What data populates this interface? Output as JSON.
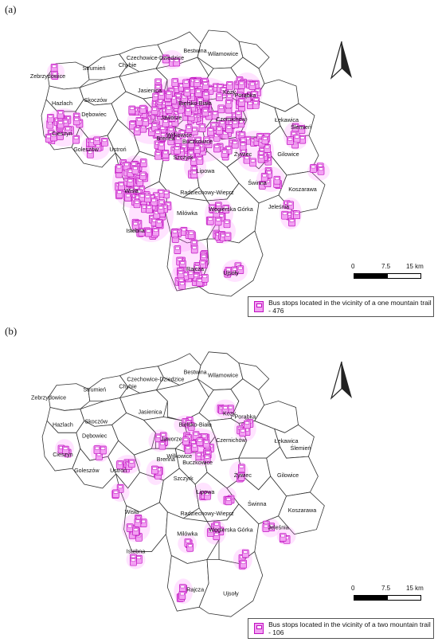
{
  "panels": [
    {
      "label": "(a)",
      "legend": "Bus stops located in the vicinity of a one mountain trail - 476",
      "places": [
        {
          "name": "Bestwina"
        },
        {
          "name": "Wilamowice"
        },
        {
          "name": "Czechowice-Dziedzice"
        },
        {
          "name": "Zebrzydowice"
        },
        {
          "name": "Strumień"
        },
        {
          "name": "Chybie"
        },
        {
          "name": "Jasienica"
        },
        {
          "name": "Skoczów"
        },
        {
          "name": "Hazlach"
        },
        {
          "name": "Dębowiec"
        },
        {
          "name": "Bielsko-Biała"
        },
        {
          "name": "Porąbka"
        },
        {
          "name": "Kozy"
        },
        {
          "name": "Jaworze"
        },
        {
          "name": "Łękawica"
        },
        {
          "name": "Ślemień"
        },
        {
          "name": "Gilowice"
        },
        {
          "name": "Cieszyn"
        },
        {
          "name": "Goleszów"
        },
        {
          "name": "Ustroń"
        },
        {
          "name": "Brenna"
        },
        {
          "name": "Buczkowice"
        },
        {
          "name": "Szczyrk"
        },
        {
          "name": "Żywiec"
        },
        {
          "name": "Świnna"
        },
        {
          "name": "Koszarawa"
        },
        {
          "name": "Lipowa"
        },
        {
          "name": "Radziechowy-Wieprz"
        },
        {
          "name": "Wisła"
        },
        {
          "name": "Jeleśnia"
        },
        {
          "name": "Węgierska Górka"
        },
        {
          "name": "Istebna"
        },
        {
          "name": "Milówka"
        },
        {
          "name": "Rajcza"
        },
        {
          "name": "Ujsoły"
        },
        {
          "name": "Czernichów"
        },
        {
          "name": "Wilkowice"
        }
      ]
    },
    {
      "label": "(b)",
      "legend": "Bus stops located in the vicinity of a two mountain trail - 106",
      "places": [
        {
          "name": "Bestwina"
        },
        {
          "name": "Wilamowice"
        },
        {
          "name": "Czechowice-Dziedzice"
        },
        {
          "name": "Zebrzydowice"
        },
        {
          "name": "Strumień"
        },
        {
          "name": "Chybie"
        },
        {
          "name": "Jasienica"
        },
        {
          "name": "Skoczów"
        },
        {
          "name": "Hazlach"
        },
        {
          "name": "Dębowiec"
        },
        {
          "name": "Bielsko-Biała"
        },
        {
          "name": "Porąbka"
        },
        {
          "name": "Kozy"
        },
        {
          "name": "Jaworze"
        },
        {
          "name": "Łękawica"
        },
        {
          "name": "Ślemień"
        },
        {
          "name": "Gilowice"
        },
        {
          "name": "Cieszyn"
        },
        {
          "name": "Goleszów"
        },
        {
          "name": "Ustroń"
        },
        {
          "name": "Brenna"
        },
        {
          "name": "Buczkowice"
        },
        {
          "name": "Szczyrk"
        },
        {
          "name": "Żywiec"
        },
        {
          "name": "Świnna"
        },
        {
          "name": "Koszarawa"
        },
        {
          "name": "Lipowa"
        },
        {
          "name": "Radziechowy-Wieprz"
        },
        {
          "name": "Wisła"
        },
        {
          "name": "Jeleśnia"
        },
        {
          "name": "Węgierska Górka"
        },
        {
          "name": "Istebna"
        },
        {
          "name": "Milówka"
        },
        {
          "name": "Rajcza"
        },
        {
          "name": "Ujsoły"
        },
        {
          "name": "Czernichów"
        },
        {
          "name": "Wilkowice"
        }
      ]
    }
  ],
  "scale": {
    "ticks": [
      "0",
      "7.5",
      "15 km"
    ]
  },
  "colors": {
    "stop_fill": "#f2a0f2",
    "stop_stroke": "#c010c0",
    "boundary": "#333333"
  }
}
